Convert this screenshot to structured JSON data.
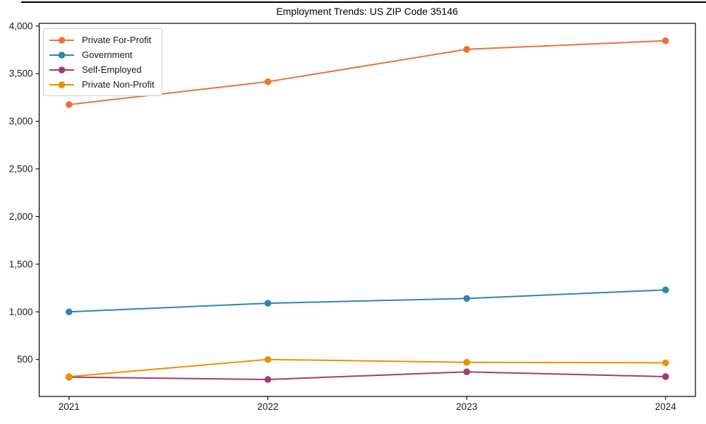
{
  "chart_data": {
    "type": "line",
    "title": "Employment Trends: US ZIP Code 35146",
    "x": [
      2021,
      2022,
      2023,
      2024
    ],
    "x_tick_labels": [
      "2021",
      "2022",
      "2023",
      "2024"
    ],
    "y_ticks": [
      500,
      1000,
      1500,
      2000,
      2500,
      3000,
      3500,
      4000
    ],
    "y_tick_labels": [
      "500",
      "1,000",
      "1,500",
      "2,000",
      "2,500",
      "3,000",
      "3,500",
      "4,000"
    ],
    "xlim": [
      2020.85,
      2024.15
    ],
    "ylim": [
      112,
      4028
    ],
    "grid": false,
    "legend_position": "upper-left",
    "series": [
      {
        "name": "Private For-Profit",
        "color": "#E8743B",
        "values": [
          3175,
          3415,
          3755,
          3845
        ]
      },
      {
        "name": "Government",
        "color": "#2E86AB",
        "values": [
          1000,
          1090,
          1140,
          1230
        ]
      },
      {
        "name": "Self-Employed",
        "color": "#A23B72",
        "values": [
          315,
          290,
          370,
          320
        ]
      },
      {
        "name": "Private Non-Profit",
        "color": "#F18F01",
        "values": [
          320,
          500,
          470,
          465
        ]
      }
    ],
    "axis_color": "#000000",
    "tick_label_color": "#1a1a1a"
  }
}
